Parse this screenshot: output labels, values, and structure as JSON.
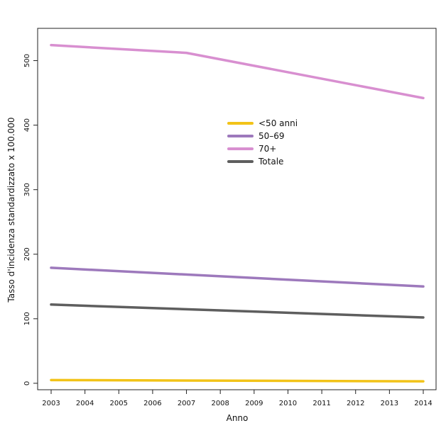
{
  "chart_data": {
    "type": "line",
    "title": "",
    "xlabel": "Anno",
    "ylabel": "Tasso d'incidenza standardizzato x 100.000",
    "x": [
      2003,
      2004,
      2005,
      2006,
      2007,
      2008,
      2009,
      2010,
      2011,
      2012,
      2013,
      2014
    ],
    "xlim": [
      2003,
      2014
    ],
    "ylim": [
      -10,
      550
    ],
    "yticks": [
      0,
      100,
      200,
      300,
      400,
      500
    ],
    "grid": false,
    "legend_position": "center",
    "series": [
      {
        "name": "<50 anni",
        "color": "#F2C318",
        "x": [
          2003,
          2014
        ],
        "values": [
          5,
          3
        ]
      },
      {
        "name": "50–69",
        "color": "#9D79BC",
        "x": [
          2003,
          2014
        ],
        "values": [
          179,
          150
        ]
      },
      {
        "name": "70+",
        "color": "#D88FD0",
        "x": [
          2003,
          2007,
          2014
        ],
        "values": [
          524,
          512,
          442
        ]
      },
      {
        "name": "Totale",
        "color": "#5E5E5E",
        "x": [
          2003,
          2014
        ],
        "values": [
          122,
          102
        ]
      }
    ]
  }
}
